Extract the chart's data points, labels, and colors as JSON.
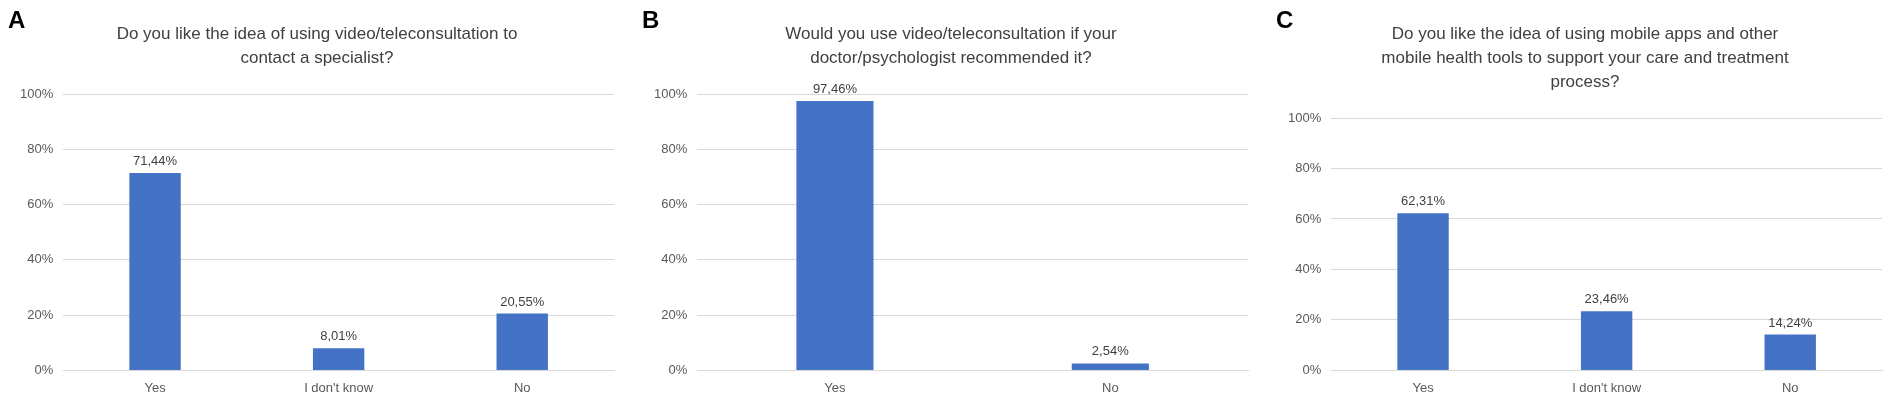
{
  "chart_data": [
    {
      "type": "bar",
      "annotations": [
        "A"
      ],
      "title": "Do you like the idea of using video/teleconsultation to contact a specialist?",
      "categories": [
        "Yes",
        "I don't know",
        "No"
      ],
      "values": [
        71.44,
        8.01,
        20.55
      ],
      "value_labels": [
        "71,44%",
        "8,01%",
        "20,55%"
      ],
      "color": "#4472c4",
      "ylim": [
        0,
        100
      ],
      "yticks": [
        {
          "value": 0,
          "label": "0%"
        },
        {
          "value": 20,
          "label": "20%"
        },
        {
          "value": 40,
          "label": "40%"
        },
        {
          "value": 60,
          "label": "60%"
        },
        {
          "value": 80,
          "label": "80%"
        },
        {
          "value": 100,
          "label": "100%"
        }
      ],
      "grid": "y",
      "legend": false
    },
    {
      "type": "bar",
      "annotations": [
        "B"
      ],
      "title": "Would you use video/teleconsultation if your doctor/psychologist recommended it?",
      "categories": [
        "Yes",
        "No"
      ],
      "values": [
        97.46,
        2.54
      ],
      "value_labels": [
        "97,46%",
        "2,54%"
      ],
      "color": "#4472c4",
      "ylim": [
        0,
        100
      ],
      "yticks": [
        {
          "value": 0,
          "label": "0%"
        },
        {
          "value": 20,
          "label": "20%"
        },
        {
          "value": 40,
          "label": "40%"
        },
        {
          "value": 60,
          "label": "60%"
        },
        {
          "value": 80,
          "label": "80%"
        },
        {
          "value": 100,
          "label": "100%"
        }
      ],
      "grid": "y",
      "legend": false
    },
    {
      "type": "bar",
      "annotations": [
        "C"
      ],
      "title": "Do you like the idea of using mobile apps and other mobile health tools to support your care and treatment process?",
      "categories": [
        "Yes",
        "I don't know",
        "No"
      ],
      "values": [
        62.31,
        23.46,
        14.24
      ],
      "value_labels": [
        "62,31%",
        "23,46%",
        "14,24%"
      ],
      "color": "#4472c4",
      "ylim": [
        0,
        100
      ],
      "yticks": [
        {
          "value": 0,
          "label": "0%"
        },
        {
          "value": 20,
          "label": "20%"
        },
        {
          "value": 40,
          "label": "40%"
        },
        {
          "value": 60,
          "label": "60%"
        },
        {
          "value": 80,
          "label": "80%"
        },
        {
          "value": 100,
          "label": "100%"
        }
      ],
      "grid": "y",
      "legend": false
    }
  ]
}
